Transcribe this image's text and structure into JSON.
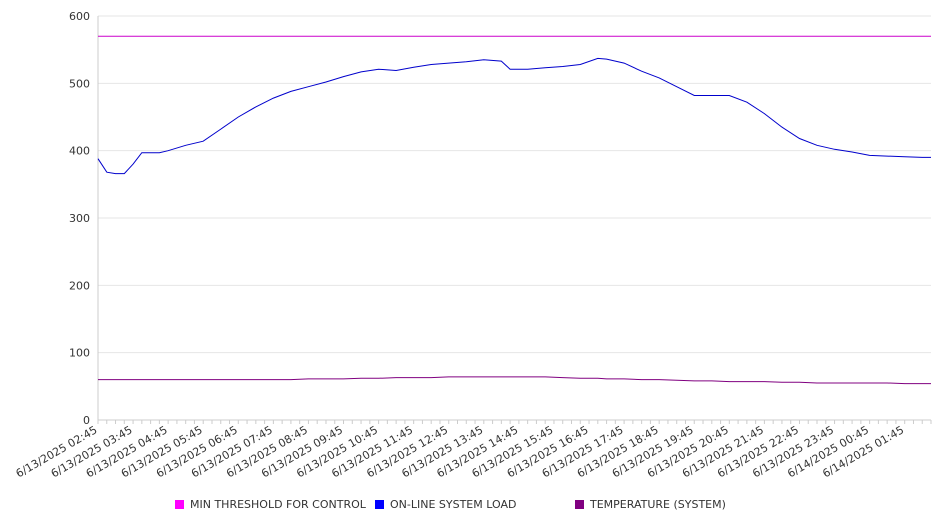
{
  "chart_data": {
    "type": "line",
    "ylim": [
      0,
      600
    ],
    "yticks": [
      0,
      100,
      200,
      300,
      400,
      500,
      600
    ],
    "grid": "horizontal",
    "legend_position": "bottom",
    "x_tick_labels": [
      "6/13/2025 02:45",
      "6/13/2025 03:45",
      "6/13/2025 04:45",
      "6/13/2025 05:45",
      "6/13/2025 06:45",
      "6/13/2025 07:45",
      "6/13/2025 08:45",
      "6/13/2025 09:45",
      "6/13/2025 10:45",
      "6/13/2025 11:45",
      "6/13/2025 12:45",
      "6/13/2025 13:45",
      "6/13/2025 14:45",
      "6/13/2025 15:45",
      "6/13/2025 16:45",
      "6/13/2025 17:45",
      "6/13/2025 18:45",
      "6/13/2025 19:45",
      "6/13/2025 20:45",
      "6/13/2025 21:45",
      "6/13/2025 22:45",
      "6/13/2025 23:45",
      "6/14/2025 00:45",
      "6/14/2025 01:45"
    ],
    "x": [
      "6/13/2025 02:45",
      "6/13/2025 03:00",
      "6/13/2025 03:15",
      "6/13/2025 03:30",
      "6/13/2025 03:45",
      "6/13/2025 04:00",
      "6/13/2025 04:15",
      "6/13/2025 04:30",
      "6/13/2025 04:45",
      "6/13/2025 05:15",
      "6/13/2025 05:45",
      "6/13/2025 06:15",
      "6/13/2025 06:45",
      "6/13/2025 07:15",
      "6/13/2025 07:45",
      "6/13/2025 08:15",
      "6/13/2025 08:45",
      "6/13/2025 09:15",
      "6/13/2025 09:45",
      "6/13/2025 10:15",
      "6/13/2025 10:45",
      "6/13/2025 11:15",
      "6/13/2025 11:45",
      "6/13/2025 12:15",
      "6/13/2025 12:45",
      "6/13/2025 13:15",
      "6/13/2025 13:45",
      "6/13/2025 14:15",
      "6/13/2025 14:30",
      "6/13/2025 14:45",
      "6/13/2025 15:00",
      "6/13/2025 15:30",
      "6/13/2025 16:00",
      "6/13/2025 16:30",
      "6/13/2025 17:00",
      "6/13/2025 17:15",
      "6/13/2025 17:45",
      "6/13/2025 18:15",
      "6/13/2025 18:45",
      "6/13/2025 19:15",
      "6/13/2025 19:45",
      "6/13/2025 20:15",
      "6/13/2025 20:45",
      "6/13/2025 21:15",
      "6/13/2025 21:45",
      "6/13/2025 22:15",
      "6/13/2025 22:45",
      "6/13/2025 23:15",
      "6/13/2025 23:45",
      "6/14/2025 00:15",
      "6/14/2025 00:45",
      "6/14/2025 01:15",
      "6/14/2025 01:45",
      "6/14/2025 02:15",
      "6/14/2025 02:30"
    ],
    "series": [
      {
        "name": "MIN THRESHOLD FOR CONTROL",
        "color": "#cc00cc",
        "values": [
          570,
          570,
          570,
          570,
          570,
          570,
          570,
          570,
          570,
          570,
          570,
          570,
          570,
          570,
          570,
          570,
          570,
          570,
          570,
          570,
          570,
          570,
          570,
          570,
          570,
          570,
          570,
          570,
          570,
          570,
          570,
          570,
          570,
          570,
          570,
          570,
          570,
          570,
          570,
          570,
          570,
          570,
          570,
          570,
          570,
          570,
          570,
          570,
          570,
          570,
          570,
          570,
          570,
          570,
          570
        ]
      },
      {
        "name": "ON-LINE SYSTEM LOAD",
        "color": "#0000cc",
        "values": [
          388,
          368,
          366,
          366,
          380,
          397,
          397,
          397,
          400,
          408,
          414,
          432,
          450,
          465,
          478,
          488,
          495,
          502,
          510,
          517,
          521,
          519,
          524,
          528,
          530,
          532,
          535,
          533,
          521,
          521,
          521,
          523,
          525,
          528,
          537,
          536,
          530,
          518,
          508,
          495,
          482,
          482,
          482,
          472,
          455,
          435,
          418,
          408,
          402,
          398,
          393,
          392,
          391,
          390,
          390
        ]
      },
      {
        "name": "TEMPERATURE (SYSTEM)",
        "color": "#800080",
        "values": [
          60,
          60,
          60,
          60,
          60,
          60,
          60,
          60,
          60,
          60,
          60,
          60,
          60,
          60,
          60,
          60,
          61,
          61,
          61,
          62,
          62,
          63,
          63,
          63,
          64,
          64,
          64,
          64,
          64,
          64,
          64,
          64,
          63,
          62,
          62,
          61,
          61,
          60,
          60,
          59,
          58,
          58,
          57,
          57,
          57,
          56,
          56,
          55,
          55,
          55,
          55,
          55,
          54,
          54,
          54
        ]
      }
    ]
  },
  "legend": [
    {
      "label": "MIN THRESHOLD FOR CONTROL",
      "color": "#ff00ff"
    },
    {
      "label": "ON-LINE SYSTEM LOAD",
      "color": "#0000ff"
    },
    {
      "label": "TEMPERATURE (SYSTEM)",
      "color": "#800080"
    }
  ]
}
